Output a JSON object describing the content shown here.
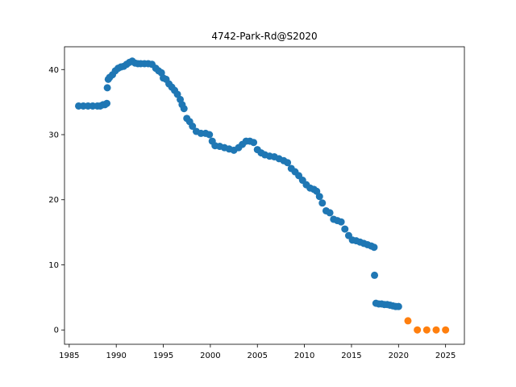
{
  "chart_data": {
    "type": "scatter",
    "title": "4742-Park-Rd@S2020",
    "xlabel": "",
    "ylabel": "",
    "xlim": [
      1984.5,
      2027
    ],
    "ylim": [
      -2.2,
      43.5
    ],
    "xticks": [
      1985,
      1990,
      1995,
      2000,
      2005,
      2010,
      2015,
      2020,
      2025
    ],
    "yticks": [
      0,
      10,
      20,
      30,
      40
    ],
    "grid": false,
    "legend": "none",
    "series": [
      {
        "color": "#1f77b4",
        "x": [
          1986.0,
          1986.5,
          1987.0,
          1987.5,
          1988.0,
          1988.3,
          1988.6,
          1988.8,
          1989.0,
          1989.05,
          1989.15,
          1989.3,
          1989.6,
          1989.9,
          1990.2,
          1990.5,
          1990.8,
          1991.1,
          1991.4,
          1991.7,
          1992.0,
          1992.3,
          1992.6,
          1993.0,
          1993.4,
          1993.8,
          1994.2,
          1994.5,
          1994.8,
          1995.0,
          1995.3,
          1995.6,
          1995.9,
          1996.2,
          1996.5,
          1996.8,
          1997.0,
          1997.2,
          1997.5,
          1997.8,
          1998.1,
          1998.5,
          1999.0,
          1999.5,
          1999.9,
          2000.2,
          2000.5,
          2001.0,
          2001.5,
          2002.0,
          2002.5,
          2003.0,
          2003.4,
          2003.8,
          2004.2,
          2004.6,
          2005.0,
          2005.4,
          2005.8,
          2006.3,
          2006.8,
          2007.3,
          2007.8,
          2008.2,
          2008.6,
          2009.0,
          2009.4,
          2009.8,
          2010.2,
          2010.6,
          2011.0,
          2011.3,
          2011.6,
          2011.9,
          2012.3,
          2012.7,
          2013.1,
          2013.5,
          2013.9,
          2014.3,
          2014.7,
          2015.1,
          2015.5,
          2015.9,
          2016.3,
          2016.7,
          2017.1,
          2017.4,
          2017.45,
          2017.6,
          2017.9,
          2018.2,
          2018.5,
          2018.8,
          2019.1,
          2019.4,
          2019.7,
          2020.0
        ],
        "y": [
          34.4,
          34.4,
          34.4,
          34.4,
          34.4,
          34.4,
          34.6,
          34.6,
          34.8,
          37.2,
          38.5,
          38.8,
          39.2,
          39.8,
          40.2,
          40.4,
          40.5,
          40.8,
          41.1,
          41.3,
          41.0,
          40.9,
          40.9,
          40.9,
          40.9,
          40.8,
          40.2,
          39.8,
          39.5,
          38.7,
          38.5,
          37.8,
          37.3,
          36.8,
          36.2,
          35.4,
          34.6,
          34.0,
          32.5,
          32.0,
          31.3,
          30.5,
          30.2,
          30.2,
          30.0,
          29.0,
          28.3,
          28.2,
          28.0,
          27.8,
          27.6,
          28.0,
          28.5,
          29.0,
          29.0,
          28.8,
          27.7,
          27.2,
          26.9,
          26.7,
          26.6,
          26.3,
          26.0,
          25.7,
          24.8,
          24.3,
          23.7,
          23.0,
          22.3,
          21.8,
          21.6,
          21.3,
          20.5,
          19.5,
          18.3,
          18.0,
          17.0,
          16.8,
          16.6,
          15.5,
          14.5,
          13.8,
          13.7,
          13.5,
          13.3,
          13.1,
          12.9,
          12.7,
          8.4,
          4.1,
          4.0,
          4.0,
          3.9,
          3.9,
          3.8,
          3.7,
          3.6,
          3.6
        ]
      },
      {
        "color": "#ff7f0e",
        "x": [
          2021,
          2022,
          2023,
          2024,
          2025
        ],
        "y": [
          1.4,
          0.0,
          0.0,
          0.0,
          0.0
        ]
      }
    ]
  }
}
